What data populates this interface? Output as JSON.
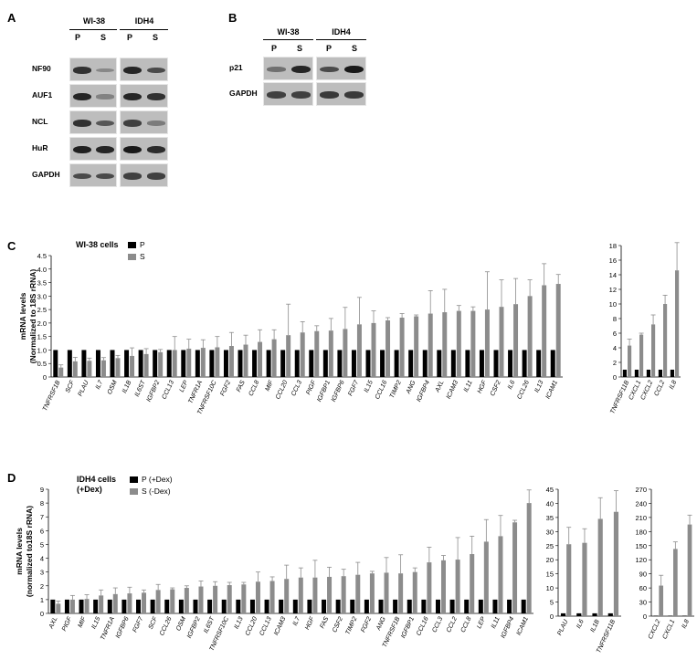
{
  "panels": {
    "A": {
      "label": "A",
      "headers": [
        "WI-38",
        "IDH4"
      ],
      "lanes": [
        "P",
        "S",
        "P",
        "S"
      ],
      "rows": [
        "NF90",
        "AUF1",
        "NCL",
        "HuR",
        "GAPDH"
      ]
    },
    "B": {
      "label": "B",
      "headers": [
        "WI-38",
        "IDH4"
      ],
      "lanes": [
        "P",
        "S",
        "P",
        "S"
      ],
      "rows": [
        "p21",
        "GAPDH"
      ]
    },
    "C": {
      "label": "C",
      "title": "WI-38 cells",
      "legend": [
        "P",
        "S"
      ]
    },
    "D": {
      "label": "D",
      "title": "IDH4 cells\n(+Dex)",
      "legend": [
        "P (+Dex)",
        "S (-Dex)"
      ]
    }
  },
  "colors": {
    "P": "#000000",
    "S": "#8c8c8c",
    "blot": "#bdbdbd",
    "band": "#1a1a1a"
  },
  "chart_data": [
    {
      "id": "C-main",
      "type": "bar",
      "ylabel": "mRNA levels\n(Normalized to 18S rRNA)",
      "ylim": [
        0,
        4.5
      ],
      "yticks": [
        "0",
        "0.5",
        "1.0",
        "1.5",
        "2.0",
        "2.5",
        "3.0",
        "3.5",
        "4.0",
        "4.5"
      ],
      "categories": [
        "TNFRSF1B",
        "SCF",
        "PLAU",
        "IL7",
        "OSM",
        "IL1B",
        "IL6ST",
        "IGFBP2",
        "CCL13",
        "LEP",
        "TNFR1A",
        "TNFRSF10C",
        "FGF2",
        "FAS",
        "CCL8",
        "MIF",
        "CCL20",
        "CCL3",
        "PIGF",
        "IGFBP1",
        "IGFBP6",
        "FGF7",
        "IL15",
        "CCL16",
        "TIMP2",
        "ANG",
        "IGFBP4",
        "AXL",
        "ICAM3",
        "IL11",
        "HGF",
        "CSF2",
        "IL6",
        "CCL26",
        "IL13",
        "ICAM1"
      ],
      "series": [
        {
          "name": "P",
          "values": [
            1,
            1,
            1,
            1,
            1,
            1,
            1,
            1,
            1,
            1,
            1,
            1,
            1,
            1,
            1,
            1,
            1,
            1,
            1,
            1,
            1,
            1,
            1,
            1,
            1,
            1,
            1,
            1,
            1,
            1,
            1,
            1,
            1,
            1,
            1,
            1
          ]
        },
        {
          "name": "S",
          "values": [
            0.35,
            0.58,
            0.6,
            0.62,
            0.7,
            0.78,
            0.85,
            0.92,
            1.0,
            1.05,
            1.08,
            1.1,
            1.15,
            1.2,
            1.3,
            1.4,
            1.55,
            1.65,
            1.7,
            1.72,
            1.78,
            1.95,
            2.0,
            2.1,
            2.2,
            2.25,
            2.35,
            2.4,
            2.45,
            2.45,
            2.5,
            2.6,
            2.7,
            3.0,
            3.4,
            3.45
          ]
        }
      ],
      "errors": [
        0.1,
        0.15,
        0.1,
        0.1,
        0.1,
        0.3,
        0.2,
        0.1,
        0.5,
        0.35,
        0.3,
        0.4,
        0.5,
        0.35,
        0.45,
        0.35,
        1.15,
        0.4,
        0.2,
        0.45,
        0.8,
        1.0,
        0.45,
        0.1,
        0.15,
        0.05,
        0.85,
        0.85,
        0.2,
        0.15,
        1.4,
        1.0,
        0.95,
        0.6,
        0.8,
        0.35
      ]
    },
    {
      "id": "C-inset",
      "type": "bar",
      "ylim": [
        0,
        18
      ],
      "yticks": [
        "0",
        "2",
        "4",
        "6",
        "8",
        "10",
        "12",
        "14",
        "16",
        "18"
      ],
      "categories": [
        "TNFRSF11B",
        "CXCL1",
        "CXCL2",
        "CCL2",
        "IL8"
      ],
      "series": [
        {
          "name": "P",
          "values": [
            1,
            1,
            1,
            1,
            1
          ]
        },
        {
          "name": "S",
          "values": [
            4.3,
            5.8,
            7.2,
            10.0,
            14.6
          ]
        }
      ],
      "errors": [
        0.9,
        0.2,
        1.3,
        1.2,
        3.8
      ]
    },
    {
      "id": "D-main",
      "type": "bar",
      "ylabel": "mRNA levels\n(normalized to18S rRNA)",
      "ylim": [
        0,
        9
      ],
      "yticks": [
        "0",
        "1",
        "2",
        "3",
        "4",
        "5",
        "6",
        "7",
        "8",
        "9"
      ],
      "categories": [
        "AXL",
        "PIGF",
        "MIF",
        "IL15",
        "TNFR1A",
        "IGFBP6",
        "FGF7",
        "SCF",
        "CCL26",
        "OSM",
        "IGFBP2",
        "IL6ST",
        "TNFRSF10C",
        "IL13",
        "CCL20",
        "CCL13",
        "ICAM3",
        "IL7",
        "HGF",
        "FAS",
        "CSF2",
        "TIMP2",
        "FGF2",
        "ANG",
        "TNFRSF1B",
        "IGFBP1",
        "CCL16",
        "CCL3",
        "CCL2",
        "CCL8",
        "LEP",
        "IL11",
        "IGFBP4",
        "ICAM1"
      ],
      "series": [
        {
          "name": "P (+Dex)",
          "values": [
            1,
            1,
            1,
            1,
            1,
            1,
            1,
            1,
            1,
            1,
            1,
            1,
            1,
            1,
            1,
            1,
            1,
            1,
            1,
            1,
            1,
            1,
            1,
            1,
            1,
            1,
            1,
            1,
            1,
            1,
            1,
            1,
            1,
            1
          ]
        },
        {
          "name": "S (-Dex)",
          "values": [
            0.7,
            1.0,
            1.05,
            1.3,
            1.4,
            1.45,
            1.5,
            1.7,
            1.75,
            1.85,
            1.95,
            2.0,
            2.05,
            2.1,
            2.3,
            2.35,
            2.5,
            2.6,
            2.6,
            2.65,
            2.7,
            2.8,
            2.9,
            2.95,
            2.9,
            3.0,
            3.7,
            3.85,
            3.9,
            4.3,
            5.2,
            5.6,
            6.6,
            8.0
          ]
        }
      ],
      "errors": [
        0.2,
        0.3,
        0.3,
        0.4,
        0.45,
        0.45,
        0.2,
        0.4,
        0.1,
        0.15,
        0.4,
        0.3,
        0.2,
        0.15,
        0.7,
        0.3,
        1.0,
        0.7,
        1.25,
        0.7,
        0.5,
        0.9,
        0.15,
        1.1,
        1.35,
        0.3,
        1.1,
        0.35,
        1.6,
        1.3,
        1.6,
        1.5,
        0.15,
        0.95
      ]
    },
    {
      "id": "D-inset1",
      "type": "bar",
      "ylim": [
        0,
        45
      ],
      "yticks": [
        "0",
        "5",
        "10",
        "15",
        "20",
        "25",
        "30",
        "35",
        "40",
        "45"
      ],
      "categories": [
        "PLAU",
        "IL6",
        "IL1B",
        "TNFRSF11B"
      ],
      "series": [
        {
          "name": "P (+Dex)",
          "values": [
            1,
            1,
            1,
            1
          ]
        },
        {
          "name": "S (-Dex)",
          "values": [
            25.5,
            26,
            34.5,
            37
          ]
        }
      ],
      "errors": [
        6.0,
        5.0,
        7.5,
        7.5
      ]
    },
    {
      "id": "D-inset2",
      "type": "bar",
      "ylim": [
        0,
        270
      ],
      "yticks": [
        "0",
        "30",
        "60",
        "90",
        "120",
        "150",
        "180",
        "210",
        "240",
        "270"
      ],
      "categories": [
        "CXCL2",
        "CXCL1",
        "IL8"
      ],
      "series": [
        {
          "name": "P (+Dex)",
          "values": [
            1,
            1,
            1
          ]
        },
        {
          "name": "S (-Dex)",
          "values": [
            65,
            143,
            195
          ]
        }
      ],
      "errors": [
        22,
        15,
        20
      ]
    }
  ]
}
